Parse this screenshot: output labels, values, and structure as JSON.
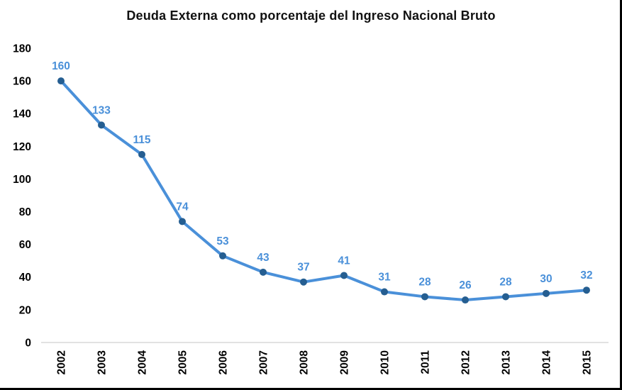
{
  "chart_data": {
    "type": "line",
    "title": "Deuda Externa como porcentaje del Ingreso Nacional Bruto",
    "categories": [
      "2002",
      "2003",
      "2004",
      "2005",
      "2006",
      "2007",
      "2008",
      "2009",
      "2010",
      "2011",
      "2012",
      "2013",
      "2014",
      "2015"
    ],
    "values": [
      160,
      133,
      115,
      74,
      53,
      43,
      37,
      41,
      31,
      28,
      26,
      28,
      30,
      32
    ],
    "xlabel": "",
    "ylabel": "",
    "ylim": [
      0,
      180
    ],
    "ytick_step": 20,
    "yticks": [
      0,
      20,
      40,
      60,
      80,
      100,
      120,
      140,
      160,
      180
    ],
    "grid": false,
    "legend_position": "none",
    "data_labels_shown": true,
    "colors": {
      "line": "#4a90d9",
      "marker": "#255e91",
      "data_label": "#4a90d9",
      "axis_line": "#d9d9d9",
      "tick_text": "#000000",
      "title_text": "#111111",
      "background": "#ffffff",
      "frame_border": "#000000"
    }
  }
}
